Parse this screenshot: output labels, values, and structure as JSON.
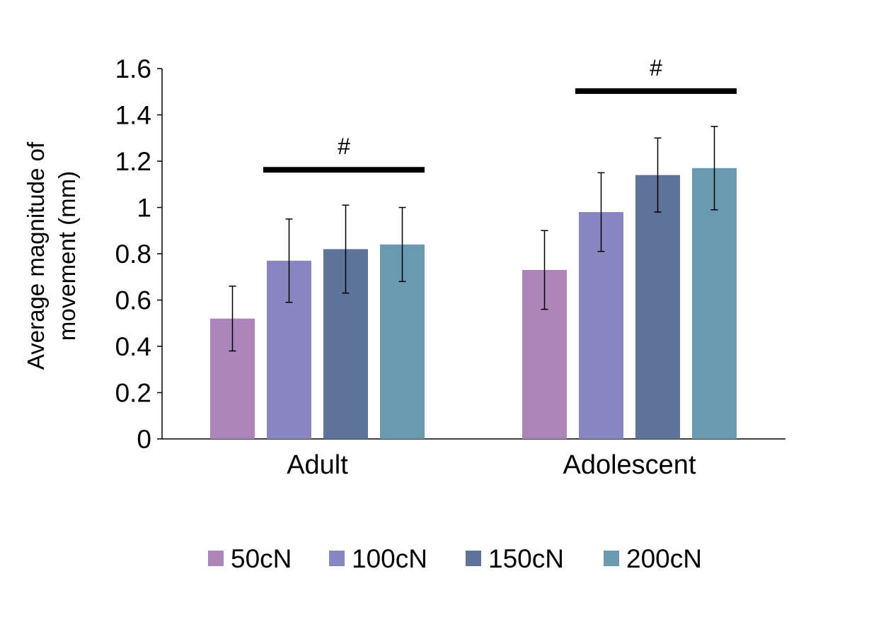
{
  "chart_data": {
    "type": "bar",
    "categories": [
      "Adult",
      "Adolescent"
    ],
    "series": [
      {
        "name": "50cN",
        "values": [
          0.52,
          0.73
        ],
        "errors": [
          0.14,
          0.17
        ],
        "color": "#ac85bb"
      },
      {
        "name": "100cN",
        "values": [
          0.77,
          0.98
        ],
        "errors": [
          0.18,
          0.17
        ],
        "color": "#8885c0"
      },
      {
        "name": "150cN",
        "values": [
          0.82,
          1.14
        ],
        "errors": [
          0.19,
          0.16
        ],
        "color": "#5e7398"
      },
      {
        "name": "200cN",
        "values": [
          0.84,
          1.17
        ],
        "errors": [
          0.16,
          0.18
        ],
        "color": "#6a9ab1"
      }
    ],
    "ylabel_lines": [
      "Average magnitude of",
      "movement  (mm)"
    ],
    "xlabel": "",
    "ylim": [
      0,
      1.6
    ],
    "yticks": [
      "0",
      "0.2",
      "0.4",
      "0.6",
      "0.8",
      "1",
      "1.2",
      "1.4",
      "1.6"
    ],
    "grid": false,
    "legend_position": "bottom",
    "significance": [
      {
        "category": "Adult",
        "from_series": 1,
        "to_series": 3,
        "label": "#"
      },
      {
        "category": "Adolescent",
        "from_series": 1,
        "to_series": 3,
        "label": "#"
      }
    ]
  }
}
